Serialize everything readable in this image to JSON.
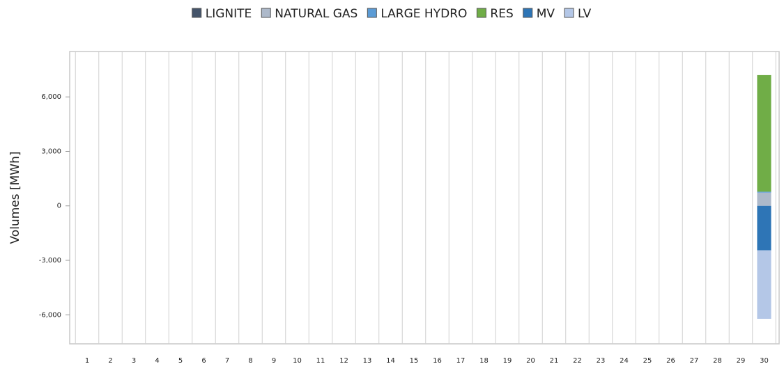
{
  "chart_data": {
    "type": "stacked-bar",
    "y_label": "Volumes [MWh]",
    "categories": [
      "1",
      "2",
      "3",
      "4",
      "5",
      "6",
      "7",
      "8",
      "9",
      "10",
      "11",
      "12",
      "13",
      "14",
      "15",
      "16",
      "17",
      "18",
      "19",
      "20",
      "21",
      "22",
      "23",
      "24",
      "25",
      "26",
      "27",
      "28",
      "29",
      "30"
    ],
    "series": [
      {
        "name": "LIGNITE",
        "color": "#44546a",
        "values": [
          null,
          null,
          null,
          null,
          null,
          null,
          null,
          null,
          null,
          null,
          null,
          null,
          null,
          null,
          null,
          null,
          null,
          null,
          null,
          null,
          null,
          null,
          null,
          null,
          null,
          null,
          null,
          null,
          null,
          0
        ]
      },
      {
        "name": "NATURAL GAS",
        "color": "#adb9ca",
        "values": [
          null,
          null,
          null,
          null,
          null,
          null,
          null,
          null,
          null,
          null,
          null,
          null,
          null,
          null,
          null,
          null,
          null,
          null,
          null,
          null,
          null,
          null,
          null,
          null,
          null,
          null,
          null,
          null,
          null,
          730
        ]
      },
      {
        "name": "LARGE HYDRO",
        "color": "#5b9bd5",
        "values": [
          null,
          null,
          null,
          null,
          null,
          null,
          null,
          null,
          null,
          null,
          null,
          null,
          null,
          null,
          null,
          null,
          null,
          null,
          null,
          null,
          null,
          null,
          null,
          null,
          null,
          null,
          null,
          null,
          null,
          50
        ]
      },
      {
        "name": "RES",
        "color": "#70ad47",
        "values": [
          null,
          null,
          null,
          null,
          null,
          null,
          null,
          null,
          null,
          null,
          null,
          null,
          null,
          null,
          null,
          null,
          null,
          null,
          null,
          null,
          null,
          null,
          null,
          null,
          null,
          null,
          null,
          null,
          null,
          6420
        ]
      },
      {
        "name": "MV",
        "color": "#2e75b6",
        "values": [
          null,
          null,
          null,
          null,
          null,
          null,
          null,
          null,
          null,
          null,
          null,
          null,
          null,
          null,
          null,
          null,
          null,
          null,
          null,
          null,
          null,
          null,
          null,
          null,
          null,
          null,
          null,
          null,
          null,
          -2450
        ]
      },
      {
        "name": "LV",
        "color": "#b4c7e7",
        "values": [
          null,
          null,
          null,
          null,
          null,
          null,
          null,
          null,
          null,
          null,
          null,
          null,
          null,
          null,
          null,
          null,
          null,
          null,
          null,
          null,
          null,
          null,
          null,
          null,
          null,
          null,
          null,
          null,
          null,
          -3770
        ]
      }
    ],
    "ylim": [
      -7600,
      8500
    ],
    "yticks": [
      {
        "value": -6000,
        "label": "-6,000"
      },
      {
        "value": -3000,
        "label": "-3,000"
      },
      0,
      {
        "value": 3000,
        "label": "3,000"
      },
      {
        "value": 6000,
        "label": "6,000"
      }
    ],
    "grid": true,
    "legend": "top"
  }
}
